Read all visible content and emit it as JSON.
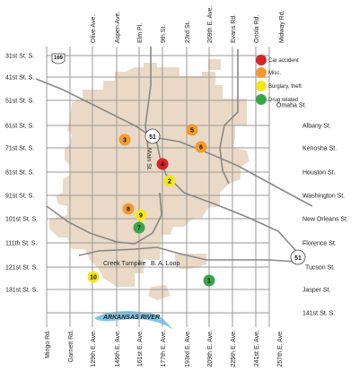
{
  "top_streets": [
    "Olive Ave.",
    "Aspen Ave.",
    "Elm Pl.",
    "9th St.",
    "23rd St.",
    "209th E. Ave.",
    "Evans Rd.",
    "Onola Rd.",
    "Midway Rd."
  ],
  "bottom_streets": [
    "Mingo Rd.",
    "Garnett Rd.",
    "129th E. Ave.",
    "145th E. Ave.",
    "161st E. Ave.",
    "177th E. Ave.",
    "193rd E. Ave.",
    "209th E. Ave.",
    "225th E. Ave.",
    "241st E. Ave.",
    "257th E. Ave."
  ],
  "left_streets": [
    "31st St. S.",
    "41st St. S.",
    "51st St. S.",
    "61st St. S.",
    "71st St. S.",
    "81st St. S.",
    "91st St. S.",
    "101st St. S.",
    "111th St. S.",
    "121st St. S.",
    "131st St. S."
  ],
  "right_streets": [
    "Omaha St.",
    "Albany St.",
    "Kenosha St.",
    "Houston St.",
    "Washington St.",
    "New Orleans St.",
    "Florence St.",
    "Tucson St.",
    "Jasper St.",
    "141st St. S."
  ],
  "center_labels": {
    "main_st": "Main St.",
    "creek_turnpike": "Creek Turnpike",
    "ba_loop": "B. A. Loop",
    "river": "ARKANSAS RIVER"
  },
  "highways": [
    "169",
    "51",
    "51"
  ],
  "legend": [
    {
      "label": "Car accident",
      "color": "#d8232a"
    },
    {
      "label": "Misc.",
      "color": "#f29a2e"
    },
    {
      "label": "Burglary, theft",
      "color": "#f5e61c"
    },
    {
      "label": "Drug related",
      "color": "#3aa548"
    }
  ],
  "markers": [
    {
      "num": "1",
      "category": "Drug related"
    },
    {
      "num": "2",
      "category": "Burglary, theft"
    },
    {
      "num": "3",
      "category": "Misc."
    },
    {
      "num": "4",
      "category": "Car accident"
    },
    {
      "num": "5",
      "category": "Misc."
    },
    {
      "num": "6",
      "category": "Misc."
    },
    {
      "num": "7",
      "category": "Drug related"
    },
    {
      "num": "8",
      "category": "Misc."
    },
    {
      "num": "9",
      "category": "Burglary, theft"
    },
    {
      "num": "10",
      "category": "Burglary, theft"
    }
  ],
  "colors": {
    "urban_area": "#ead9c6",
    "water": "#7ec8ea",
    "street_line": "#9a9a9a",
    "highway": "#888888"
  }
}
